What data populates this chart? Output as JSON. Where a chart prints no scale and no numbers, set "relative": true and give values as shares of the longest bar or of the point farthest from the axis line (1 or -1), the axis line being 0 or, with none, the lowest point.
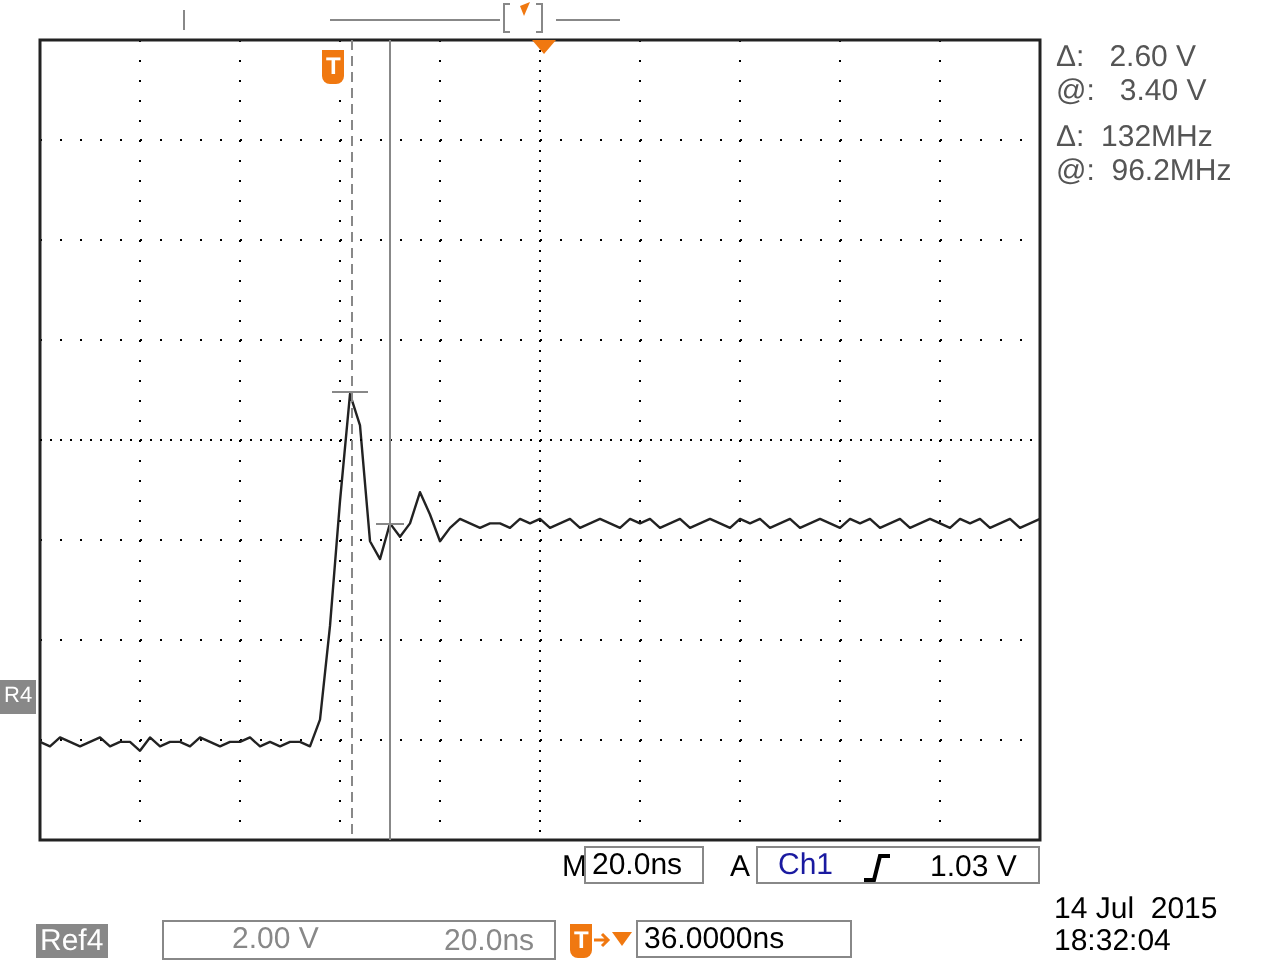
{
  "chart_data": {
    "type": "line",
    "relative": true,
    "grid": true,
    "marker": "none",
    "line_style": "solid",
    "categories": [
      null,
      null,
      null,
      null,
      null,
      null,
      null,
      null,
      null,
      null,
      null,
      null,
      null,
      null,
      null,
      null,
      null,
      null,
      null,
      null,
      null,
      null,
      null,
      null,
      null,
      null,
      null,
      null,
      null,
      null,
      null,
      null,
      null,
      null,
      null,
      null,
      null,
      null,
      null,
      null,
      null,
      null,
      null,
      null,
      null,
      null,
      null,
      null,
      null,
      null,
      null,
      null,
      null,
      null,
      null,
      null,
      null,
      null,
      null,
      null,
      null,
      null,
      null,
      null,
      null,
      null,
      null,
      null,
      null,
      null,
      null,
      null,
      null,
      null,
      null,
      null,
      null,
      null,
      null,
      null,
      null,
      null,
      null,
      null,
      null,
      null,
      null,
      null,
      null,
      null,
      null,
      null,
      null,
      null,
      null,
      null,
      null,
      null,
      null,
      null,
      null
    ],
    "series": [
      {
        "color": "#222222",
        "values": [
          0.22,
          0.21,
          0.23,
          0.22,
          0.21,
          0.22,
          0.23,
          0.21,
          0.22,
          0.22,
          0.2,
          0.23,
          0.21,
          0.22,
          0.22,
          0.21,
          0.23,
          0.22,
          0.21,
          0.22,
          0.22,
          0.23,
          0.21,
          0.22,
          0.21,
          0.22,
          0.22,
          0.21,
          0.27,
          0.48,
          0.76,
          1,
          0.93,
          0.67,
          0.63,
          0.71,
          0.68,
          0.71,
          0.78,
          0.73,
          0.67,
          0.7,
          0.72,
          0.71,
          0.7,
          0.71,
          0.71,
          0.7,
          0.72,
          0.71,
          0.72,
          0.7,
          0.71,
          0.72,
          0.7,
          0.71,
          0.72,
          0.71,
          0.7,
          0.72,
          0.71,
          0.72,
          0.7,
          0.71,
          0.72,
          0.7,
          0.71,
          0.72,
          0.71,
          0.7,
          0.72,
          0.71,
          0.72,
          0.7,
          0.71,
          0.72,
          0.7,
          0.71,
          0.72,
          0.71,
          0.7,
          0.72,
          0.71,
          0.72,
          0.7,
          0.71,
          0.72,
          0.7,
          0.71,
          0.72,
          0.71,
          0.7,
          0.72,
          0.71,
          0.72,
          0.7,
          0.71,
          0.72,
          0.7,
          0.71,
          0.72
        ]
      }
    ],
    "annotations": [
      "Δ:   2.60 V",
      "@:   3.40 V",
      "Δ:  132MHz",
      "@:  96.2MHz",
      "M",
      "20.0ns",
      "A",
      "Ch1",
      "1.03 V",
      "14 Jul  2015",
      "18:32:04",
      "Ref4",
      "2.00 V",
      "20.0ns",
      "36.0000ns",
      "R4",
      "T",
      "T"
    ]
  }
}
